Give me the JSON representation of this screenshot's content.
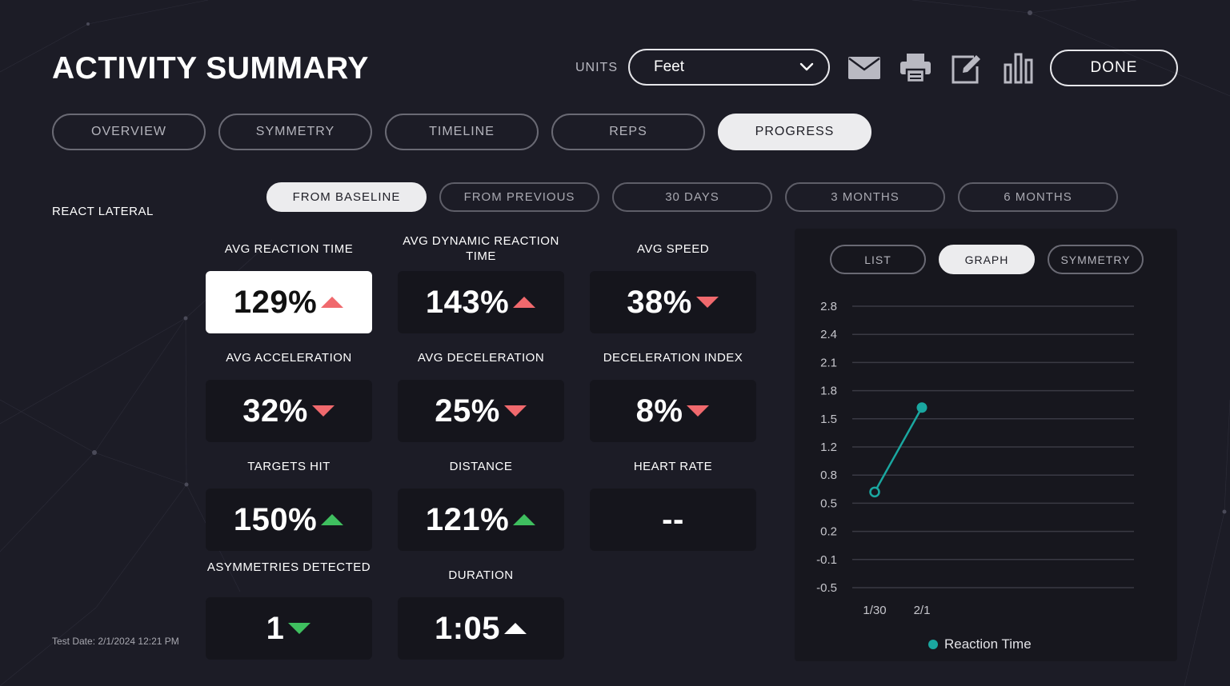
{
  "header": {
    "title": "ACTIVITY SUMMARY",
    "units_label": "UNITS",
    "units_value": "Feet",
    "done_label": "DONE",
    "icons": [
      "mail-icon",
      "print-icon",
      "edit-icon",
      "bar-chart-icon",
      "chevron-down-icon"
    ]
  },
  "tabs": [
    {
      "label": "OVERVIEW",
      "active": false
    },
    {
      "label": "SYMMETRY",
      "active": false
    },
    {
      "label": "TIMELINE",
      "active": false
    },
    {
      "label": "REPS",
      "active": false
    },
    {
      "label": "PROGRESS",
      "active": true
    }
  ],
  "activity": "REACT LATERAL",
  "periods": [
    {
      "label": "FROM BASELINE",
      "active": true
    },
    {
      "label": "FROM PREVIOUS",
      "active": false
    },
    {
      "label": "30 DAYS",
      "active": false
    },
    {
      "label": "3 MONTHS",
      "active": false
    },
    {
      "label": "6 MONTHS",
      "active": false
    }
  ],
  "metrics": [
    {
      "label": "AVG REACTION TIME",
      "value": "129%",
      "trend": "up",
      "color": "#f0696d",
      "highlight": true
    },
    {
      "label": "AVG DYNAMIC REACTION TIME",
      "value": "143%",
      "trend": "up",
      "color": "#f0696d"
    },
    {
      "label": "AVG SPEED",
      "value": "38%",
      "trend": "down",
      "color": "#f0696d"
    },
    {
      "label": "AVG ACCELERATION",
      "value": "32%",
      "trend": "down",
      "color": "#f0696d"
    },
    {
      "label": "AVG DECELERATION",
      "value": "25%",
      "trend": "down",
      "color": "#f0696d"
    },
    {
      "label": "DECELERATION INDEX",
      "value": "8%",
      "trend": "down",
      "color": "#f0696d"
    },
    {
      "label": "TARGETS HIT",
      "value": "150%",
      "trend": "up",
      "color": "#3fbf5f"
    },
    {
      "label": "DISTANCE",
      "value": "121%",
      "trend": "up",
      "color": "#3fbf5f"
    },
    {
      "label": "HEART RATE",
      "value": "--",
      "trend": "none",
      "color": "#ffffff"
    },
    {
      "label": "ASYMMETRIES DETECTED",
      "value": "1",
      "trend": "down",
      "color": "#3fbf5f"
    },
    {
      "label": "DURATION",
      "value": "1:05",
      "trend": "up",
      "color": "#ffffff"
    }
  ],
  "test_date": "Test Date: 2/1/2024 12:21 PM",
  "graph_tabs": [
    {
      "label": "LIST",
      "active": false
    },
    {
      "label": "GRAPH",
      "active": true
    },
    {
      "label": "SYMMETRY",
      "active": false
    }
  ],
  "chart_data": {
    "type": "line",
    "x": [
      "1/30",
      "2/1"
    ],
    "series": [
      {
        "name": "Reaction Time",
        "values": [
          0.62,
          1.62
        ],
        "color": "#1aa7a0"
      }
    ],
    "y_tick_labels": [
      "2.8",
      "2.4",
      "2.1",
      "1.8",
      "1.5",
      "1.2",
      "0.8",
      "0.5",
      "0.2",
      "-0.1",
      "-0.5"
    ],
    "ylim": [
      -0.5,
      2.8
    ],
    "grid": true,
    "legend": "bottom"
  }
}
